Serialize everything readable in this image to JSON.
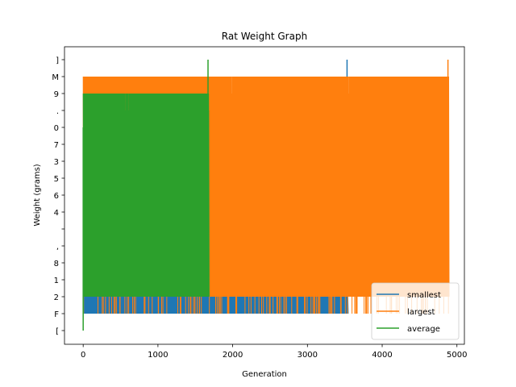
{
  "chart_data": {
    "type": "line",
    "title": "Rat Weight Graph",
    "xlabel": "Generation",
    "ylabel": "Weight (grams)",
    "xlim": [
      -250,
      5100
    ],
    "xticks": [
      0,
      1000,
      2000,
      3000,
      4000,
      5000
    ],
    "xtick_labels": [
      "0",
      "1000",
      "2000",
      "3000",
      "4000",
      "5000"
    ],
    "ytick_labels": [
      "[",
      "F",
      "2",
      "1",
      "8",
      ",",
      "",
      "4",
      "6",
      "5",
      "3",
      "7",
      "0",
      ".",
      "9",
      "M",
      "]"
    ],
    "grid": false,
    "legend_position": "lower right",
    "series": [
      {
        "name": "smallest",
        "color": "#1f77b4",
        "x_range": [
          0,
          3540
        ],
        "band_low": 1,
        "band_high": 15,
        "typical_low": 1,
        "typical_high": 2,
        "spikes": [
          {
            "x": 3530,
            "y": 16
          }
        ]
      },
      {
        "name": "largest",
        "color": "#ff7f0e",
        "x_range": [
          0,
          4890
        ],
        "band_low": 1,
        "band_high": 15,
        "typical_low": 2,
        "typical_high": 15,
        "spikes": [
          {
            "x": 4880,
            "y": 16
          }
        ]
      },
      {
        "name": "average",
        "color": "#2ca02c",
        "x_range": [
          0,
          1680
        ],
        "band_low": 2,
        "band_high": 14,
        "typical_low": 2,
        "typical_high": 14,
        "spikes": [
          {
            "x": 0,
            "y": 0
          },
          {
            "x": 1670,
            "y": 16
          }
        ]
      }
    ]
  }
}
